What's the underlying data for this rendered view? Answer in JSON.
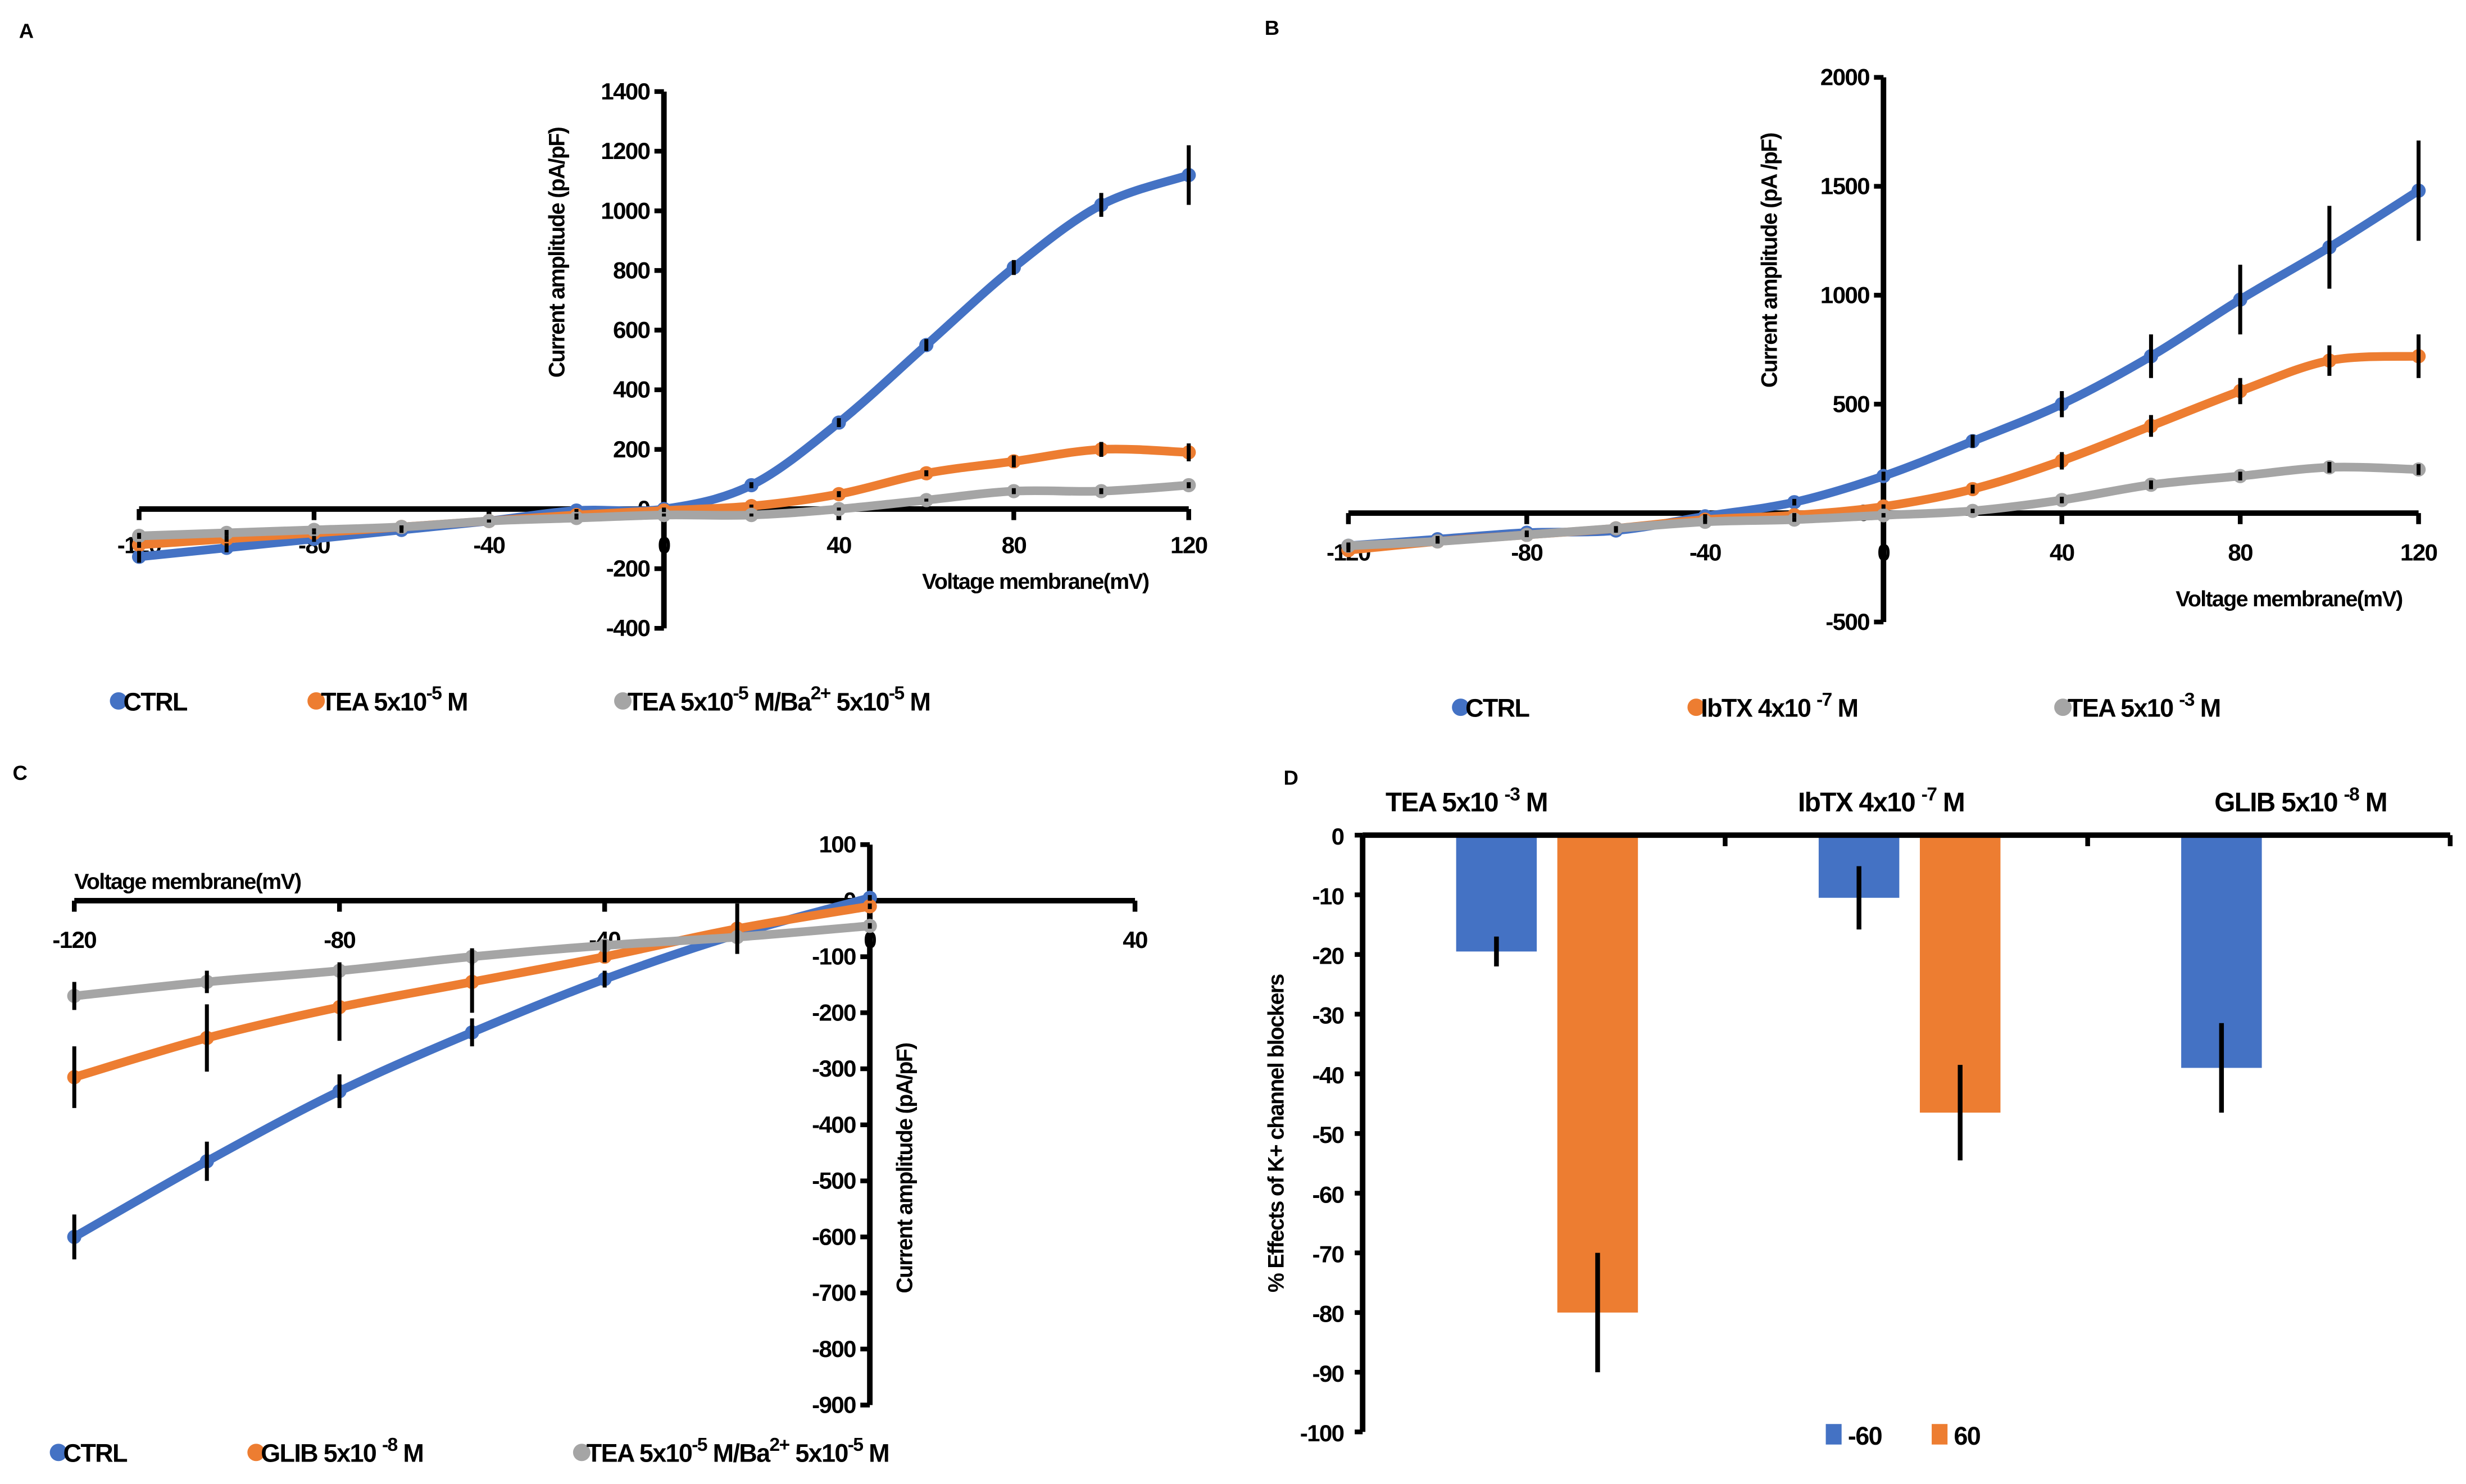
{
  "colors": {
    "blue": "#4472C4",
    "orange": "#ED7D31",
    "grey": "#A5A5A5",
    "error_bar": "#000000"
  },
  "chart_data": [
    {
      "panel_label": "A",
      "type": "line",
      "xlabel": "Voltage membrane(mV)",
      "ylabel": "Current amplitude (pA/pF)",
      "xlim": [
        -120,
        120
      ],
      "ylim": [
        -400,
        1400
      ],
      "xticks": [
        -120,
        -80,
        -40,
        0,
        40,
        80,
        120
      ],
      "xtick_labels": [
        "-120",
        "-80",
        "-40",
        "0",
        "40",
        "80",
        "120"
      ],
      "yticks": [
        -400,
        -200,
        0,
        200,
        400,
        600,
        800,
        1000,
        1200,
        1400
      ],
      "ytick_labels": [
        "-400",
        "-200",
        "0",
        "200",
        "400",
        "600",
        "800",
        "1000",
        "1200",
        "1400"
      ],
      "legend_position": "bottom",
      "grid": false,
      "x": [
        -120,
        -100,
        -80,
        -60,
        -40,
        -20,
        0,
        20,
        40,
        60,
        80,
        100,
        120
      ],
      "series": [
        {
          "name_parts": [
            {
              "t": "CTRL"
            }
          ],
          "color": "#4472C4",
          "values": [
            -160,
            -130,
            -100,
            -70,
            -40,
            -5,
            0,
            80,
            290,
            550,
            810,
            1020,
            1120
          ],
          "errors": [
            20,
            15,
            10,
            10,
            5,
            5,
            5,
            10,
            15,
            20,
            25,
            40,
            100
          ]
        },
        {
          "name_parts": [
            {
              "t": "TEA 5x10"
            },
            {
              "t": "-5",
              "sup": true
            },
            {
              "t": " M"
            }
          ],
          "color": "#ED7D31",
          "values": [
            -120,
            -100,
            -80,
            -60,
            -40,
            -20,
            -5,
            10,
            50,
            120,
            160,
            200,
            190
          ],
          "errors": [
            10,
            10,
            5,
            5,
            5,
            5,
            5,
            5,
            10,
            10,
            20,
            25,
            30
          ]
        },
        {
          "name_parts": [
            {
              "t": "TEA 5x10"
            },
            {
              "t": "-5",
              "sup": true
            },
            {
              "t": " M/Ba"
            },
            {
              "t": "2+",
              "sup": true
            },
            {
              "t": " 5x10"
            },
            {
              "t": "-5",
              "sup": true
            },
            {
              "t": " M"
            }
          ],
          "color": "#A5A5A5",
          "values": [
            -90,
            -80,
            -70,
            -60,
            -40,
            -30,
            -20,
            -20,
            0,
            30,
            60,
            60,
            80
          ],
          "errors": [
            10,
            10,
            5,
            5,
            5,
            5,
            5,
            5,
            5,
            5,
            10,
            10,
            10
          ]
        }
      ]
    },
    {
      "panel_label": "B",
      "type": "line",
      "xlabel": "Voltage membrane(mV)",
      "ylabel": "Current amplitude (pA /pF)",
      "xlim": [
        -120,
        120
      ],
      "ylim": [
        -500,
        2000
      ],
      "xticks": [
        -120,
        -80,
        -40,
        0,
        40,
        80,
        120
      ],
      "xtick_labels": [
        "-120",
        "-80",
        "-40",
        "0",
        "40",
        "80",
        "120"
      ],
      "yticks": [
        -500,
        0,
        500,
        1000,
        1500,
        2000
      ],
      "ytick_labels": [
        "-500",
        "0",
        "500",
        "1000",
        "1500",
        "2000"
      ],
      "legend_position": "bottom",
      "grid": false,
      "x": [
        -120,
        -100,
        -80,
        -60,
        -40,
        -20,
        0,
        20,
        40,
        60,
        80,
        100,
        120
      ],
      "series": [
        {
          "name_parts": [
            {
              "t": "CTRL"
            }
          ],
          "color": "#4472C4",
          "values": [
            -150,
            -120,
            -90,
            -80,
            -15,
            50,
            170,
            330,
            500,
            720,
            980,
            1220,
            1480
          ],
          "errors": [
            15,
            15,
            10,
            10,
            10,
            15,
            20,
            30,
            60,
            100,
            160,
            190,
            230
          ]
        },
        {
          "name_parts": [
            {
              "t": "IbTX 4x10 "
            },
            {
              "t": "-7",
              "sup": true
            },
            {
              "t": " M"
            }
          ],
          "color": "#ED7D31",
          "values": [
            -170,
            -130,
            -100,
            -70,
            -30,
            -10,
            30,
            110,
            240,
            400,
            560,
            700,
            720
          ],
          "errors": [
            10,
            10,
            10,
            10,
            10,
            10,
            10,
            20,
            40,
            50,
            60,
            70,
            100
          ]
        },
        {
          "name_parts": [
            {
              "t": "TEA 5x10 "
            },
            {
              "t": "-3",
              "sup": true
            },
            {
              "t": " M"
            }
          ],
          "color": "#A5A5A5",
          "values": [
            -150,
            -130,
            -100,
            -70,
            -40,
            -30,
            -10,
            10,
            60,
            130,
            170,
            210,
            200
          ],
          "errors": [
            10,
            10,
            10,
            10,
            10,
            10,
            10,
            10,
            15,
            20,
            20,
            25,
            25
          ]
        }
      ]
    },
    {
      "panel_label": "C",
      "type": "line",
      "xlabel": "Voltage membrane(mV)",
      "ylabel": "Current amplitude (pA/pF)",
      "xlim": [
        -120,
        40
      ],
      "ylim": [
        -900,
        100
      ],
      "xticks": [
        -120,
        -80,
        -40,
        0,
        40
      ],
      "xtick_labels": [
        "-120",
        "-80",
        "-40",
        "0",
        "40"
      ],
      "yticks": [
        -900,
        -800,
        -700,
        -600,
        -500,
        -400,
        -300,
        -200,
        -100,
        0,
        100
      ],
      "ytick_labels": [
        "-900",
        "-800",
        "-700",
        "-600",
        "-500",
        "-400",
        "-300",
        "-200",
        "-100",
        "0",
        "100"
      ],
      "legend_position": "bottom",
      "grid": false,
      "x": [
        -120,
        -100,
        -80,
        -60,
        -40,
        -20,
        0
      ],
      "series": [
        {
          "name_parts": [
            {
              "t": "CTRL"
            }
          ],
          "color": "#4472C4",
          "values": [
            -600,
            -465,
            -340,
            -235,
            -140,
            -60,
            5
          ],
          "errors": [
            40,
            35,
            30,
            25,
            15,
            10,
            5
          ]
        },
        {
          "name_parts": [
            {
              "t": "GLIB 5x10 "
            },
            {
              "t": "-8",
              "sup": true
            },
            {
              "t": " M"
            }
          ],
          "color": "#ED7D31",
          "values": [
            -315,
            -245,
            -190,
            -145,
            -100,
            -50,
            -10
          ],
          "errors": [
            55,
            60,
            60,
            55,
            10,
            45,
            5
          ]
        },
        {
          "name_parts": [
            {
              "t": "TEA 5x10"
            },
            {
              "t": "-5",
              "sup": true
            },
            {
              "t": " M/Ba"
            },
            {
              "t": "2+",
              "sup": true
            },
            {
              "t": " 5x10"
            },
            {
              "t": "-5",
              "sup": true
            },
            {
              "t": " M"
            }
          ],
          "color": "#A5A5A5",
          "values": [
            -170,
            -145,
            -125,
            -100,
            -80,
            -65,
            -45
          ],
          "errors": [
            25,
            20,
            15,
            15,
            10,
            10,
            5
          ]
        }
      ]
    },
    {
      "panel_label": "D",
      "type": "bar",
      "ylabel": "% Effects of K+ channel blockers",
      "ylim": [
        -100,
        0
      ],
      "yticks": [
        -100,
        -90,
        -80,
        -70,
        -60,
        -50,
        -40,
        -30,
        -20,
        -10,
        0
      ],
      "ytick_labels": [
        "-100",
        "-90",
        "-80",
        "-70",
        "-60",
        "-50",
        "-40",
        "-30",
        "-20",
        "-10",
        "0"
      ],
      "legend_position": "bottom",
      "grid": false,
      "categories": [
        [
          {
            "t": "TEA 5x10 "
          },
          {
            "t": "-3",
            "sup": true
          },
          {
            "t": " M"
          }
        ],
        [
          {
            "t": "IbTX 4x10 "
          },
          {
            "t": "-7",
            "sup": true
          },
          {
            "t": " M"
          }
        ],
        [
          {
            "t": "GLIB 5x10 "
          },
          {
            "t": "-8",
            "sup": true
          },
          {
            "t": " M"
          }
        ]
      ],
      "series": [
        {
          "name": "-60",
          "color": "#4472C4",
          "values": [
            -19.5,
            -10.5,
            -39
          ],
          "errors": [
            2.5,
            5.3,
            7.5
          ]
        },
        {
          "name": "60",
          "color": "#ED7D31",
          "values": [
            -80,
            -46.5,
            null
          ],
          "errors": [
            10,
            8,
            null
          ]
        }
      ]
    }
  ]
}
